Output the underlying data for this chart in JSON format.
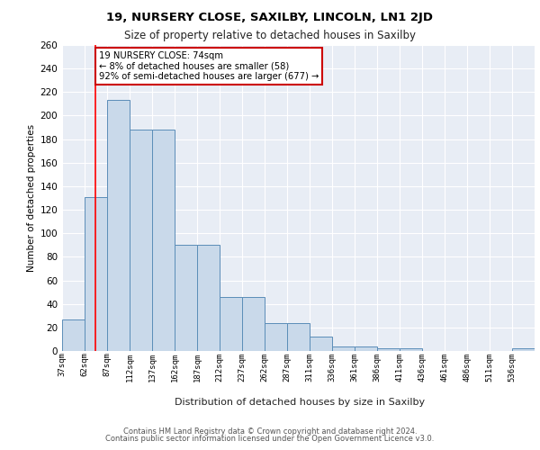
{
  "title1": "19, NURSERY CLOSE, SAXILBY, LINCOLN, LN1 2JD",
  "title2": "Size of property relative to detached houses in Saxilby",
  "xlabel": "Distribution of detached houses by size in Saxilby",
  "ylabel": "Number of detached properties",
  "bar_color": "#c9d9ea",
  "bar_edge_color": "#5b8db8",
  "background_color": "#e8edf5",
  "grid_color": "#ffffff",
  "categories": [
    "37sqm",
    "62sqm",
    "87sqm",
    "112sqm",
    "137sqm",
    "162sqm",
    "187sqm",
    "212sqm",
    "237sqm",
    "262sqm",
    "287sqm",
    "311sqm",
    "336sqm",
    "361sqm",
    "386sqm",
    "411sqm",
    "436sqm",
    "461sqm",
    "486sqm",
    "511sqm",
    "536sqm"
  ],
  "values": [
    27,
    131,
    213,
    188,
    188,
    90,
    90,
    46,
    46,
    24,
    24,
    12,
    4,
    4,
    2,
    2,
    0,
    0,
    0,
    0,
    2
  ],
  "ylim": [
    0,
    260
  ],
  "yticks": [
    0,
    20,
    40,
    60,
    80,
    100,
    120,
    140,
    160,
    180,
    200,
    220,
    240,
    260
  ],
  "red_line_x": 74,
  "annotation_line1": "19 NURSERY CLOSE: 74sqm",
  "annotation_line2": "← 8% of detached houses are smaller (58)",
  "annotation_line3": "92% of semi-detached houses are larger (677) →",
  "annotation_box_color": "#ffffff",
  "annotation_border_color": "#cc0000",
  "footer1": "Contains HM Land Registry data © Crown copyright and database right 2024.",
  "footer2": "Contains public sector information licensed under the Open Government Licence v3.0."
}
